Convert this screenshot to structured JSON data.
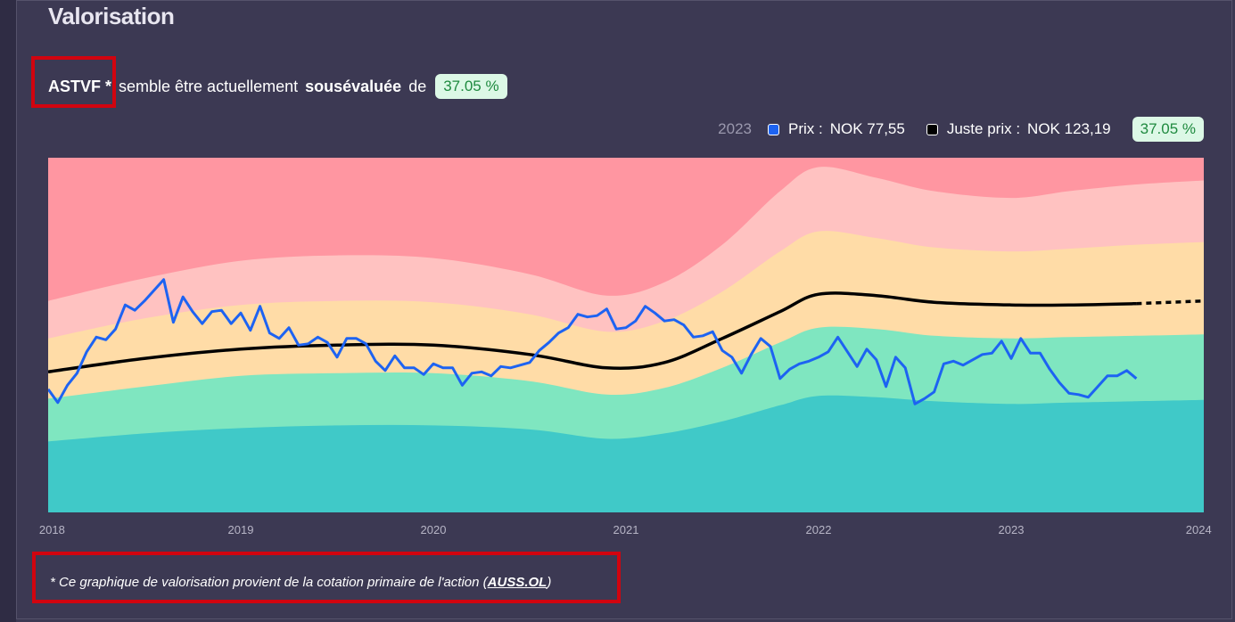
{
  "header": {
    "title": "Valorisation"
  },
  "summary": {
    "ticker": "ASTVF *",
    "text_before": "semble être actuellement",
    "status": "sousévaluée",
    "text_after": "de",
    "percent": "37.05 %"
  },
  "legend": {
    "year": "2023",
    "price_label": "Prix :",
    "price_value": "NOK 77,55",
    "fair_label": "Juste prix :",
    "fair_value": "NOK 123,19",
    "percent": "37.05 %"
  },
  "footnote": {
    "prefix": "* Ce graphique de valorisation provient de la cotation primaire de l'action (",
    "link": "AUSS.OL",
    "suffix": ")"
  },
  "colors": {
    "price_line": "#1d63f2",
    "fair_line": "#000000",
    "strongly_overvalued": "#ff96a1",
    "overvalued": "#ffc2c1",
    "about_right": "#ffdca7",
    "undervalued": "#7fe6c0",
    "strongly_undervalued": "#40c9c8",
    "deep_undervalued": "#4aabde",
    "positive_badge_bg": "#dcf8e6",
    "positive_badge_text": "#1f8a3f"
  },
  "chart_data": {
    "type": "area",
    "x_ticks": [
      "2018",
      "2019",
      "2020",
      "2021",
      "2022",
      "2023",
      "2024"
    ],
    "xlim": [
      2018.0,
      2024.0
    ],
    "ylim": [
      0,
      265
    ],
    "series": [
      {
        "name": "Prix",
        "x": [
          2018.0,
          2018.05,
          2018.1,
          2018.15,
          2018.2,
          2018.25,
          2018.3,
          2018.35,
          2018.4,
          2018.45,
          2018.5,
          2018.55,
          2018.6,
          2018.65,
          2018.7,
          2018.75,
          2018.8,
          2018.85,
          2018.9,
          2018.95,
          2019.0,
          2019.05,
          2019.1,
          2019.15,
          2019.2,
          2019.25,
          2019.3,
          2019.35,
          2019.4,
          2019.45,
          2019.5,
          2019.55,
          2019.6,
          2019.65,
          2019.7,
          2019.75,
          2019.8,
          2019.85,
          2019.9,
          2019.95,
          2020.0,
          2020.05,
          2020.1,
          2020.15,
          2020.2,
          2020.25,
          2020.3,
          2020.35,
          2020.4,
          2020.45,
          2020.5,
          2020.55,
          2020.6,
          2020.65,
          2020.7,
          2020.75,
          2020.8,
          2020.85,
          2020.9,
          2020.95,
          2021.0,
          2021.05,
          2021.1,
          2021.15,
          2021.2,
          2021.25,
          2021.3,
          2021.35,
          2021.4,
          2021.45,
          2021.5,
          2021.55,
          2021.6,
          2021.65,
          2021.7,
          2021.75,
          2021.8,
          2021.85,
          2021.9,
          2021.95,
          2022.0,
          2022.05,
          2022.1,
          2022.15,
          2022.2,
          2022.25,
          2022.3,
          2022.35,
          2022.4,
          2022.45,
          2022.5,
          2022.55,
          2022.6,
          2022.65,
          2022.7,
          2022.75,
          2022.8,
          2022.85,
          2022.9,
          2022.95,
          2023.0,
          2023.05,
          2023.1,
          2023.15,
          2023.2,
          2023.25,
          2023.3,
          2023.35,
          2023.4,
          2023.45,
          2023.5,
          2023.55,
          2023.6,
          2023.65
        ],
        "values": [
          92,
          82,
          95,
          104,
          120,
          131,
          129,
          137,
          155,
          151,
          158,
          166,
          174,
          142,
          161,
          150,
          141,
          150,
          151,
          141,
          149,
          136,
          154,
          134,
          130,
          138,
          125,
          126,
          131,
          127,
          116,
          130,
          130,
          126,
          113,
          106,
          117,
          108,
          108,
          103,
          111,
          108,
          108,
          95,
          104,
          105,
          102,
          109,
          108,
          110,
          112,
          121,
          127,
          134,
          138,
          148,
          146,
          147,
          152,
          137,
          138,
          143,
          154,
          149,
          143,
          144,
          140,
          131,
          132,
          135,
          121,
          116,
          104,
          118,
          130,
          124,
          100,
          107,
          111,
          113,
          116,
          120,
          131,
          120,
          109,
          122,
          114,
          94,
          116,
          108,
          81,
          85,
          90,
          111,
          113,
          110,
          114,
          118,
          119,
          128,
          115,
          130,
          119,
          119,
          107,
          97,
          89,
          88,
          86,
          94,
          102,
          102,
          106,
          100
        ]
      },
      {
        "name": "Juste prix",
        "x": [
          2018.0,
          2018.5,
          2019.0,
          2019.5,
          2020.0,
          2020.5,
          2020.9,
          2021.2,
          2021.5,
          2021.8,
          2022.0,
          2022.3,
          2022.6,
          2023.0,
          2023.3,
          2023.65,
          2024.0
        ],
        "values": [
          105,
          115,
          122,
          125,
          125,
          118,
          108,
          112,
          130,
          150,
          163,
          162,
          157,
          155,
          155,
          156,
          158
        ],
        "projected_from": 2023.65
      }
    ],
    "bands": [
      {
        "name": "strongly_overvalued_top",
        "values": [
          265,
          265,
          265,
          265,
          265,
          265,
          265,
          265,
          265,
          265,
          265,
          265,
          265,
          265,
          265,
          265,
          265
        ]
      },
      {
        "name": "overvalued",
        "values": [
          158,
          175,
          188,
          192,
          190,
          178,
          162,
          172,
          200,
          240,
          258,
          250,
          240,
          235,
          240,
          245,
          248
        ]
      },
      {
        "name": "about_right",
        "values": [
          130,
          145,
          155,
          158,
          157,
          148,
          135,
          143,
          165,
          195,
          210,
          205,
          198,
          195,
          197,
          200,
          202
        ]
      },
      {
        "name": "undervalued",
        "values": [
          85,
          94,
          102,
          104,
          104,
          98,
          88,
          93,
          108,
          127,
          138,
          137,
          132,
          130,
          131,
          132,
          133
        ]
      },
      {
        "name": "strongly_undervalued",
        "values": [
          53,
          59,
          63,
          65,
          65,
          62,
          55,
          59,
          68,
          80,
          87,
          86,
          83,
          81,
          82,
          83,
          84
        ]
      },
      {
        "name": "deep_undervalued",
        "values": [
          0,
          0,
          0,
          0,
          0,
          0,
          0,
          0,
          0,
          0,
          0,
          0,
          0,
          0,
          0,
          0,
          0
        ]
      }
    ],
    "band_colors": [
      "#ff96a1",
      "#ffc2c1",
      "#ffdca7",
      "#7fe6c0",
      "#40c9c8",
      "#4aabde"
    ]
  }
}
